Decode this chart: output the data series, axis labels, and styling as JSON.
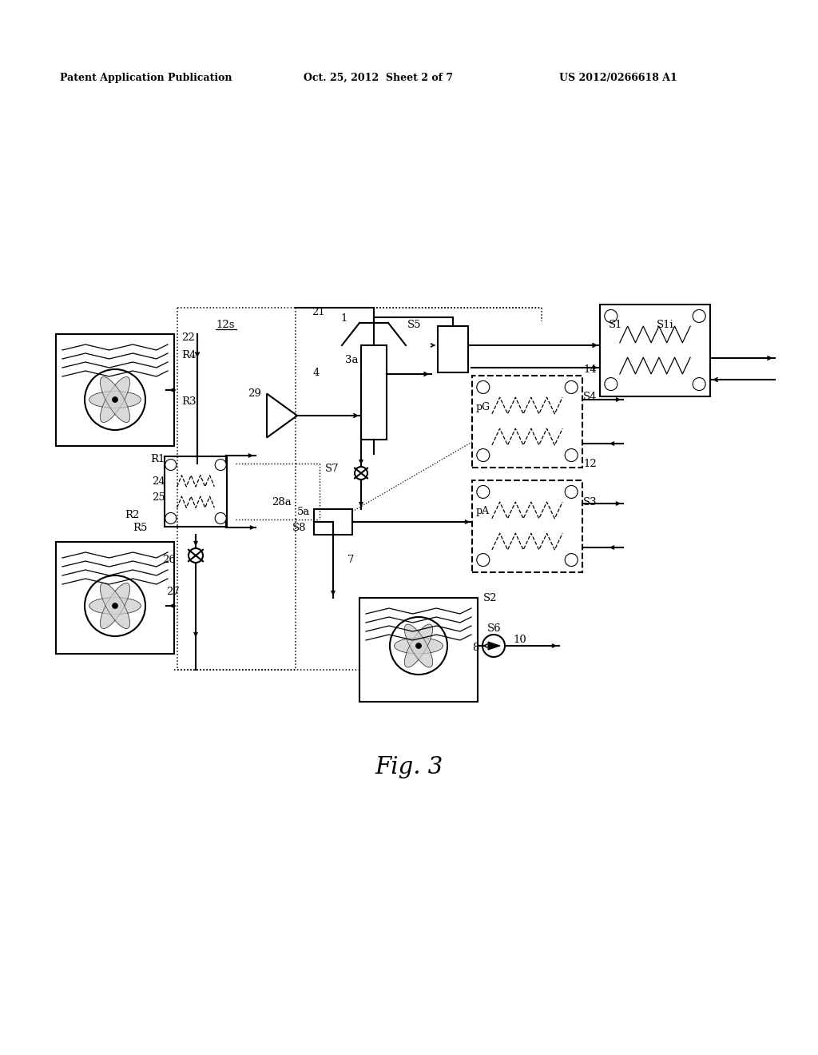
{
  "bg_color": "#ffffff",
  "header_left": "Patent Application Publication",
  "header_center": "Oct. 25, 2012  Sheet 2 of 7",
  "header_right": "US 2012/0266618 A1",
  "fig_label": "Fig. 3",
  "line_color": "#000000",
  "line_width": 1.5,
  "thin_line": 0.8
}
